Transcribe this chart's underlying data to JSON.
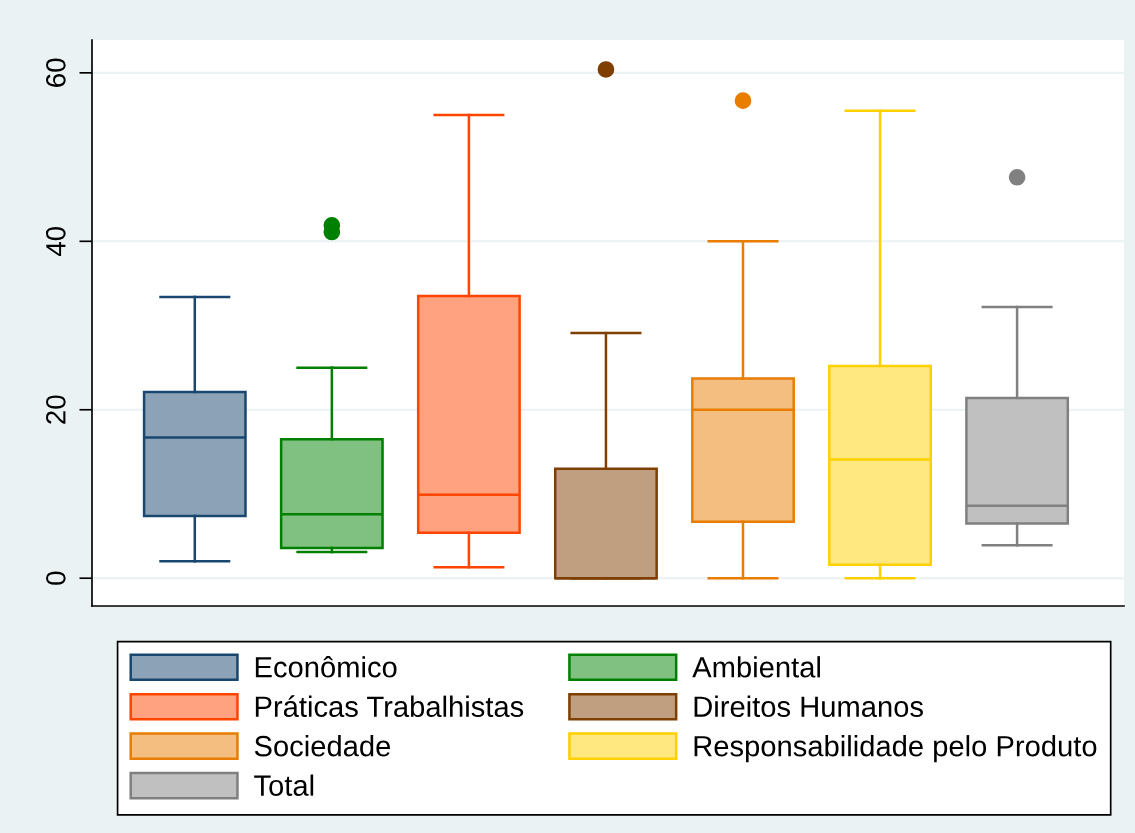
{
  "chart_data": {
    "type": "box",
    "categories": [
      null
    ],
    "ylim": [
      -3.3,
      63.9
    ],
    "yticks": [
      0,
      20,
      40,
      60
    ],
    "grid": "y",
    "legend": "bottom",
    "tick_labels": "y",
    "marker": "circle",
    "series": [
      {
        "name": "Econômico",
        "color": "#1a476f",
        "boxes": [
          {
            "low": 2.0,
            "q1": 7.4,
            "median": 16.7,
            "q3": 22.1,
            "high": 33.4
          }
        ]
      },
      {
        "name": "Ambiental",
        "color": "#008000",
        "boxes": [
          {
            "low": 3.1,
            "q1": 3.6,
            "median": 7.6,
            "q3": 16.5,
            "high": 25.0,
            "outliers": [
              41.1,
              41.9
            ]
          }
        ]
      },
      {
        "name": "Práticas Trabalhistas",
        "color": "#ff4500",
        "boxes": [
          {
            "low": 1.3,
            "q1": 5.4,
            "median": 9.9,
            "q3": 33.5,
            "high": 55.0
          }
        ]
      },
      {
        "name": "Direitos Humanos",
        "color": "#7f3f00",
        "boxes": [
          {
            "low": 0,
            "q1": 0,
            "median": 0,
            "q3": 13.0,
            "high": 29.1,
            "outliers": [
              60.4
            ]
          }
        ]
      },
      {
        "name": "Sociedade",
        "color": "#e87d00",
        "boxes": [
          {
            "low": 0,
            "q1": 6.7,
            "median": 20.0,
            "q3": 23.7,
            "high": 40.0,
            "outliers": [
              56.7
            ]
          }
        ]
      },
      {
        "name": "Responsabilidade pelo Produto",
        "color": "#ffd000",
        "boxes": [
          {
            "low": 0,
            "q1": 1.6,
            "median": 14.1,
            "q3": 25.2,
            "high": 55.5
          }
        ]
      },
      {
        "name": "Total",
        "color": "#808080",
        "boxes": [
          {
            "low": 3.9,
            "q1": 6.5,
            "median": 8.6,
            "q3": 21.4,
            "high": 32.2,
            "outliers": [
              47.6
            ]
          }
        ]
      }
    ]
  }
}
